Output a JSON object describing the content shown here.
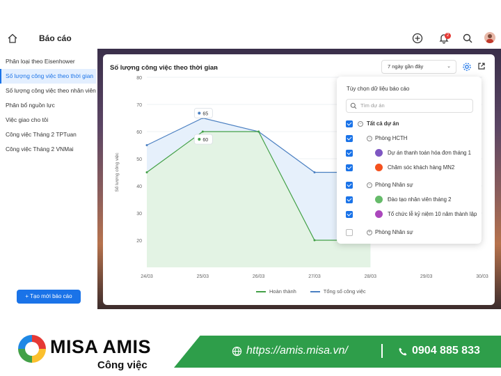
{
  "header": {
    "title": "Báo cáo"
  },
  "sidebar": {
    "items": [
      {
        "label": "Phân loại theo Eisenhower"
      },
      {
        "label": "Số lượng công việc theo thời gian"
      },
      {
        "label": "Số lượng công việc theo nhân viên"
      },
      {
        "label": "Phân bổ nguồn lực"
      },
      {
        "label": "Việc giao cho tôi"
      },
      {
        "label": "Công việc Tháng 2 TPTuan"
      },
      {
        "label": "Công việc Tháng 2 VNMai"
      }
    ],
    "new_button": "+ Tạo mới báo cáo"
  },
  "card": {
    "title": "Số lượng công việc theo thời gian",
    "range": "7 ngày gần đây"
  },
  "notification_count": "2",
  "chart_data": {
    "type": "area",
    "categories": [
      "24/03",
      "25/03",
      "26/03",
      "27/03",
      "28/03",
      "29/03",
      "30/03"
    ],
    "series": [
      {
        "name": "Hoàn thành",
        "values": [
          45,
          60,
          60,
          20,
          20,
          null,
          null
        ]
      },
      {
        "name": "Tổng số công việc",
        "values": [
          55,
          65,
          60,
          45,
          45,
          null,
          null
        ]
      }
    ],
    "yticks": [
      20,
      30,
      40,
      50,
      60,
      70,
      80
    ],
    "ylim": [
      10,
      80
    ],
    "ylabel": "Số lượng công việc",
    "annotations": [
      {
        "label": "65"
      },
      {
        "label": "60"
      }
    ],
    "colors": {
      "done": "#43a047",
      "total": "#4a7fc1"
    }
  },
  "panel": {
    "title": "Tùy chọn dữ liệu báo cáo",
    "search_placeholder": "Tìm dự án",
    "rows": [
      {
        "label": "Tất cả dự án"
      },
      {
        "label": "Phòng HCTH"
      },
      {
        "label": "Dự án thanh toán hóa đơn tháng 1"
      },
      {
        "label": "Chăm sóc khách hàng MN2"
      },
      {
        "label": "Phòng Nhân sự"
      },
      {
        "label": "Đào tạo nhân viên tháng 2"
      },
      {
        "label": "Tổ chức lễ kỷ niệm 10 năm thành lập"
      },
      {
        "label": "Phòng Nhân sự"
      }
    ]
  },
  "footer": {
    "brand": "MISA AMIS",
    "sub": "Công việc",
    "url": "https://amis.misa.vn/",
    "phone": "0904 885 833"
  }
}
